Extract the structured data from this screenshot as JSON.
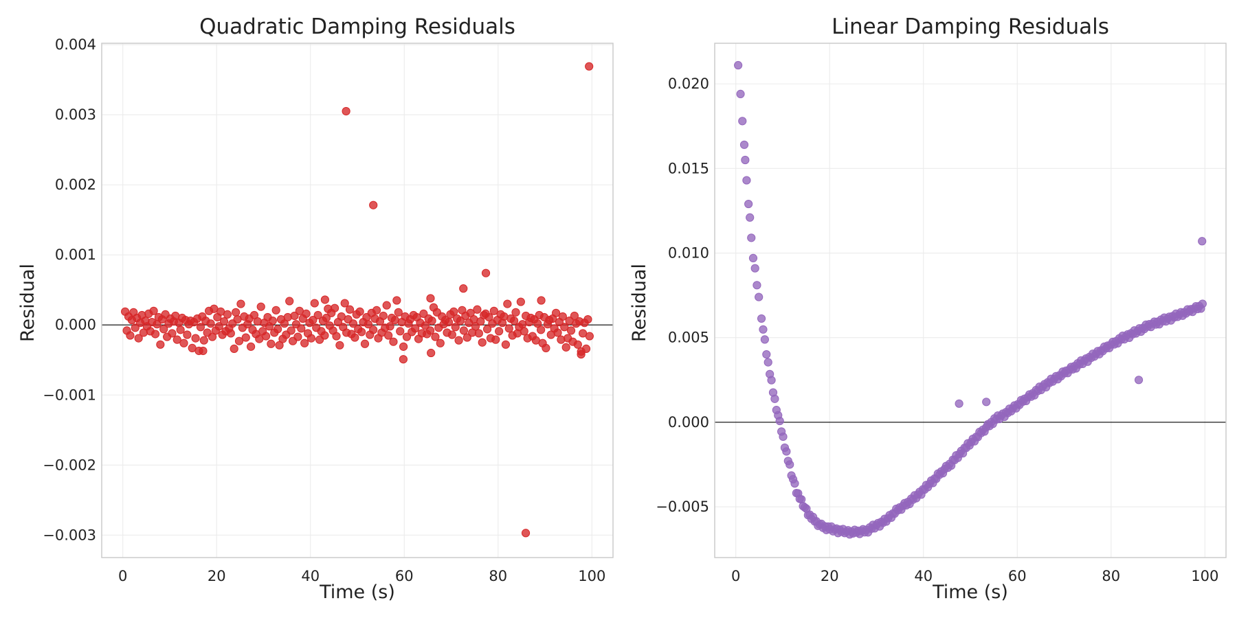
{
  "chart_data": [
    {
      "type": "scatter",
      "title": "Quadratic Damping Residuals",
      "xlabel": "Time (s)",
      "ylabel": "Residual",
      "xlim": [
        -4.5,
        104.5
      ],
      "ylim": [
        -0.00332,
        0.00402
      ],
      "x_ticks": [
        0,
        20,
        40,
        60,
        80,
        100
      ],
      "x_tick_labels": [
        "0",
        "20",
        "40",
        "60",
        "80",
        "100"
      ],
      "y_ticks": [
        -0.003,
        -0.002,
        -0.001,
        0,
        0.001,
        0.002,
        0.003,
        0.004
      ],
      "y_tick_labels": [
        "−0.003",
        "−0.002",
        "−0.001",
        "0.000",
        "0.001",
        "0.002",
        "0.003",
        "0.004"
      ],
      "zero_line": true,
      "grid": true,
      "marker_color": "#d62728",
      "series": [
        {
          "noise": {
            "x_start": 0.5,
            "x_end": 99.5,
            "values": [
              0.00019,
              -8e-05,
              0.00012,
              -0.00015,
              7e-05,
              0.00018,
              -4e-05,
              0.0001,
              -0.00019,
              3e-05,
              0.00014,
              -0.00011,
              6e-05,
              -2e-05,
              0.00016,
              -9e-05,
              4e-05,
              0.0002,
              -0.00013,
              1e-05,
              0.00011,
              -0.00028,
              8e-05,
              -6e-05,
              0.00015,
              -0.00017,
              2e-05,
              9e-05,
              -0.00012,
              5e-05,
              0.00013,
              -0.00021,
              3e-05,
              -7e-05,
              0.0001,
              -0.00026,
              7e-05,
              -0.00014,
              1e-05,
              6e-05,
              -0.00033,
              4e-05,
              -0.00019,
              9e-05,
              -0.00037,
              -3e-05,
              0.00012,
              -0.00022,
              6e-05,
              -0.00011,
              0.0002,
              2e-05,
              -0.00017,
              0.00023,
              -8e-05,
              0.00011,
              -2e-05,
              0.00019,
              -0.00014,
              5e-05,
              -9e-05,
              0.00015,
              -5e-05,
              -0.00012,
              2e-05,
              -0.00034,
              0.00018,
              8e-05,
              -0.00023,
              0.0003,
              -4e-05,
              0.00012,
              -0.00018,
              1e-05,
              9e-05,
              -0.00031,
              -7e-05,
              0.00014,
              -0.00013,
              5e-05,
              -0.0002,
              0.00026,
              -9e-05,
              3e-05,
              -0.00016,
              0.00011,
              -2e-05,
              -0.00027,
              6e-05,
              -0.00011,
              0.00021,
              -6e-05,
              -0.00029,
              8e-05,
              -0.0002,
              2e-05,
              -0.00014,
              0.00011,
              0.00034,
              -8e-05,
              -0.00023,
              0.00013,
              1e-05,
              -0.00017,
              0.0002,
              -5e-05,
              9e-05,
              -0.00026,
              0.00016,
              -0.00012,
              3e-05,
              -0.00019,
              7e-05,
              0.00031,
              -4e-05,
              0.00014,
              -0.00021,
              -9e-05,
              6e-05,
              -0.00015,
              0.0001,
              0.00023,
              -1e-05,
              0.00017,
              -8e-05,
              0.00024,
              -0.00016,
              4e-05,
              -0.00029,
              0.00012,
              -3e-05,
              0.00031,
              -0.00011,
              8e-05,
              0.00022,
              -0.00013,
              2e-05,
              -0.00018,
              0.00015,
              -6e-05,
              0.00019,
              -0.0001,
              4e-05,
              -0.00027,
              0.00011,
              1e-05,
              -0.00014,
              0.00017,
              -7e-05,
              9e-05,
              0.00021,
              -0.00019,
              5e-05,
              -0.00011,
              0.00013,
              -4e-05,
              0.00028,
              -0.00015,
              -2e-05,
              0.0001,
              -0.00024,
              7e-05,
              0.00035,
              0.00018,
              -9e-05,
              4e-05,
              -0.00031,
              0.00012,
              -0.00017,
              2e-05,
              8e-05,
              -0.0001,
              0.00014,
              -5e-05,
              0.00011,
              -0.0002,
              3e-05,
              -0.00012,
              0.00016,
              -1e-05,
              -0.00013,
              9e-05,
              -8e-05,
              6e-05,
              0.00025,
              -0.00017,
              0.00018,
              -4e-05,
              -0.00026,
              0.00012,
              1e-05,
              7e-05,
              -0.00011,
              4e-05,
              0.00015,
              -0.00014,
              0.00019,
              -3e-05,
              9e-05,
              -0.00022,
              6e-05,
              0.00021,
              -8e-05,
              0.00013,
              -0.00018,
              3e-05,
              0.00017,
              -0.00011,
              8e-05,
              -2e-05,
              0.00022,
              -0.00012,
              5e-05,
              -0.00025,
              0.00014,
              0.00016,
              -6e-05,
              0.00011,
              -0.00019,
              2e-05,
              0.0002,
              -0.00021,
              7e-05,
              -9e-05,
              0.00015,
              3e-05,
              0.00012,
              -0.00028,
              0.0003,
              -5e-05,
              9e-05,
              -0.00015,
              6e-05,
              0.00018,
              -0.00012,
              -3e-05,
              0.00033,
              1e-05,
              -9e-05,
              0.00013,
              -0.00019,
              4e-05,
              0.0001,
              -0.00016,
              8e-05,
              -0.00022,
              2e-05,
              0.00014,
              -7e-05,
              -0.00026,
              0.00011,
              -0.00033,
              1e-05,
              7e-05,
              -0.00014,
              9e-05,
              -5e-05,
              0.00017,
              -0.00011,
              4e-05,
              -0.00021,
              0.00012,
              -3e-05,
              -0.00032,
              -0.00019,
              6e-05,
              -8e-05,
              -0.00024,
              0.00013,
              2e-05,
              -0.00028,
              5e-05,
              -0.00038,
              -0.00012,
              3e-05,
              -0.00034,
              8e-05,
              -0.00016
            ]
          },
          "points": [
            {
              "x": 47.6,
              "y": 0.00305
            },
            {
              "x": 53.4,
              "y": 0.00171
            },
            {
              "x": 99.4,
              "y": 0.00369
            },
            {
              "x": 77.4,
              "y": 0.00074
            },
            {
              "x": 72.6,
              "y": 0.00052
            },
            {
              "x": 65.6,
              "y": 0.00038
            },
            {
              "x": 43.1,
              "y": 0.00036
            },
            {
              "x": 89.2,
              "y": 0.00035
            },
            {
              "x": 59.8,
              "y": -0.00049
            },
            {
              "x": 85.9,
              "y": -0.00297
            },
            {
              "x": 17.1,
              "y": -0.00037
            },
            {
              "x": 65.7,
              "y": -0.0004
            },
            {
              "x": 97.7,
              "y": -0.00042
            }
          ]
        }
      ]
    },
    {
      "type": "scatter",
      "title": "Linear Damping Residuals",
      "xlabel": "Time (s)",
      "ylabel": "Residual",
      "xlim": [
        -4.5,
        104.5
      ],
      "ylim": [
        -0.008,
        0.0224
      ],
      "x_ticks": [
        0,
        20,
        40,
        60,
        80,
        100
      ],
      "x_tick_labels": [
        "0",
        "20",
        "40",
        "60",
        "80",
        "100"
      ],
      "y_ticks": [
        -0.005,
        0,
        0.005,
        0.01,
        0.015,
        0.02
      ],
      "y_tick_labels": [
        "−0.005",
        "0.000",
        "0.005",
        "0.010",
        "0.015",
        "0.020"
      ],
      "zero_line": true,
      "grid": true,
      "marker_color": "#9467bd",
      "series": [
        {
          "trend": {
            "x_start": 0.5,
            "x_end": 99.5,
            "x": [
              0.5,
              1,
              2,
              3,
              4,
              5,
              6,
              7,
              8,
              9,
              10,
              11,
              12,
              13,
              14,
              15,
              16,
              17,
              18,
              19,
              20,
              22,
              24,
              26,
              28,
              30,
              32,
              34,
              36,
              38,
              40,
              43,
              46,
              49,
              52,
              55,
              58,
              61,
              64,
              67,
              70,
              73,
              76,
              79,
              82,
              85,
              88,
              91,
              94,
              97,
              99.5
            ],
            "y": [
              0.021,
              0.0194,
              0.0162,
              0.0128,
              0.0097,
              0.0072,
              0.0051,
              0.0033,
              0.0017,
              0.0004,
              -0.0008,
              -0.0021,
              -0.0032,
              -0.0041,
              -0.0047,
              -0.0052,
              -0.0056,
              -0.0059,
              -0.0061,
              -0.0062,
              -0.0063,
              -0.0064,
              -0.0065,
              -0.0065,
              -0.0064,
              -0.0061,
              -0.0058,
              -0.0053,
              -0.0049,
              -0.0045,
              -0.004,
              -0.0032,
              -0.0024,
              -0.0015,
              -0.0007,
              0.0001,
              0.0006,
              0.0012,
              0.0018,
              0.0024,
              0.0029,
              0.0034,
              0.0039,
              0.0044,
              0.0049,
              0.0053,
              0.0057,
              0.006,
              0.0063,
              0.0066,
              0.0069
            ]
          },
          "noise": {
            "values": [
              0.00012,
              -8e-05,
              5e-05,
              -0.00014,
              0.0001,
              -3e-05,
              0.00015,
              -0.00011,
              2e-05,
              9e-05,
              -0.00016,
              6e-05,
              -5e-05,
              0.00013,
              -9e-05,
              1e-05,
              0.00011,
              -0.00013,
              4e-05,
              -7e-05,
              0.00014,
              -2e-05,
              8e-05,
              -0.00012,
              3e-05
            ]
          },
          "points": [
            {
              "x": 47.6,
              "y": 0.0011
            },
            {
              "x": 53.4,
              "y": 0.0012
            },
            {
              "x": 85.9,
              "y": 0.0025
            },
            {
              "x": 99.4,
              "y": 0.0107
            },
            {
              "x": 0.5,
              "y": 0.0211
            },
            {
              "x": 1.0,
              "y": 0.0194
            },
            {
              "x": 1.4,
              "y": 0.0178
            },
            {
              "x": 1.8,
              "y": 0.0164
            },
            {
              "x": 2.0,
              "y": 0.0155
            },
            {
              "x": 2.3,
              "y": 0.0143
            },
            {
              "x": 2.7,
              "y": 0.0129
            },
            {
              "x": 3.0,
              "y": 0.0121
            },
            {
              "x": 3.3,
              "y": 0.0109
            },
            {
              "x": 3.7,
              "y": 0.0097
            },
            {
              "x": 4.1,
              "y": 0.0091
            },
            {
              "x": 4.5,
              "y": 0.0081
            },
            {
              "x": 4.9,
              "y": 0.0074
            }
          ]
        }
      ]
    }
  ]
}
